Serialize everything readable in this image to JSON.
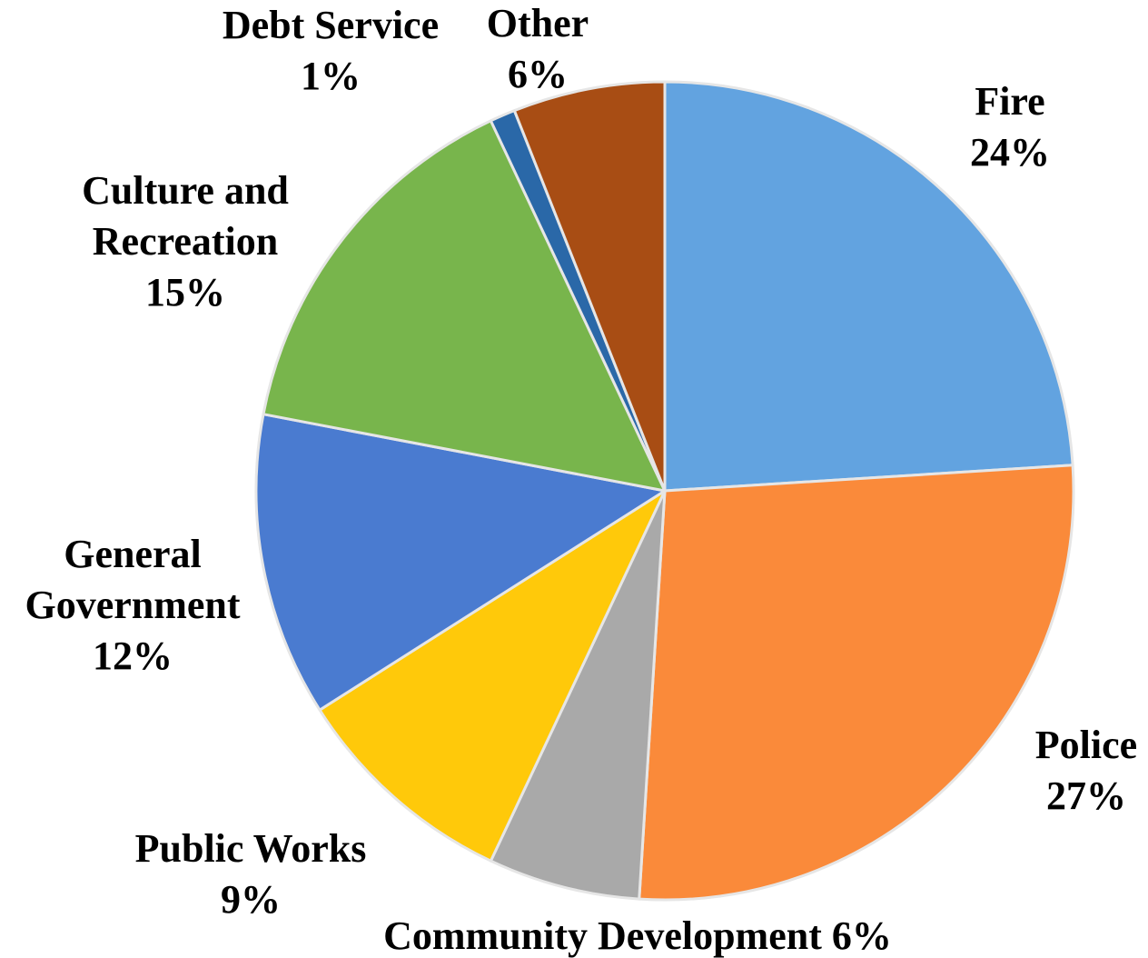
{
  "chart_data": {
    "type": "pie",
    "title": "",
    "start_angle_deg": 0,
    "direction": "clockwise",
    "slices": [
      {
        "category": "Fire",
        "value": 24,
        "label_lines": [
          "Fire",
          "24%"
        ],
        "color": "#62a3e0"
      },
      {
        "category": "Police",
        "value": 27,
        "label_lines": [
          "Police",
          "27%"
        ],
        "color": "#fa8a3a"
      },
      {
        "category": "Community Development",
        "value": 6,
        "label_lines": [
          "Community Development 6%"
        ],
        "color": "#a9a9a9"
      },
      {
        "category": "Public Works",
        "value": 9,
        "label_lines": [
          "Public Works",
          "9%"
        ],
        "color": "#ffc90a"
      },
      {
        "category": "General Government",
        "value": 12,
        "label_lines": [
          "General",
          "Government",
          "12%"
        ],
        "color": "#4a7bd0"
      },
      {
        "category": "Culture and Recreation",
        "value": 15,
        "label_lines": [
          "Culture and",
          "Recreation",
          "15%"
        ],
        "color": "#78b54c"
      },
      {
        "category": "Debt Service",
        "value": 1,
        "label_lines": [
          "Debt Service",
          "1%"
        ],
        "color": "#2a68a8"
      },
      {
        "category": "Other",
        "value": 6,
        "label_lines": [
          "Other",
          "6%"
        ],
        "color": "#a84d14"
      }
    ],
    "legend": "none",
    "data_labels": "outside"
  }
}
